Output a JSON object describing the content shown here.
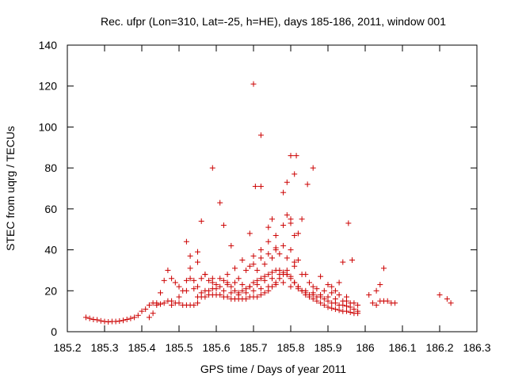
{
  "chart_data": {
    "type": "scatter",
    "title": "Rec. ufpr (Lon=310, Lat=-25, h=HE), days 185-186, 2011, window 001",
    "xlabel": "GPS time / Days of year 2011",
    "ylabel": "STEC from uqrg / TECUs",
    "xlim": [
      185.2,
      186.3
    ],
    "ylim": [
      0,
      140
    ],
    "xticks": [
      "185.2",
      "185.3",
      "185.4",
      "185.5",
      "185.6",
      "185.7",
      "185.8",
      "185.9",
      "186",
      "186.1",
      "186.2",
      "186.3"
    ],
    "yticks": [
      "0",
      "20",
      "40",
      "60",
      "80",
      "100",
      "120",
      "140"
    ],
    "grid": false,
    "marker": "+",
    "color": "#cc0000",
    "series": [
      {
        "name": "STEC",
        "points": [
          [
            185.25,
            7
          ],
          [
            185.26,
            6.5
          ],
          [
            185.27,
            6
          ],
          [
            185.28,
            5.8
          ],
          [
            185.29,
            5.3
          ],
          [
            185.3,
            5
          ],
          [
            185.31,
            4.8
          ],
          [
            185.32,
            5
          ],
          [
            185.33,
            5
          ],
          [
            185.34,
            5.2
          ],
          [
            185.35,
            5.5
          ],
          [
            185.36,
            6
          ],
          [
            185.37,
            6.5
          ],
          [
            185.38,
            7
          ],
          [
            185.39,
            8
          ],
          [
            185.4,
            10
          ],
          [
            185.41,
            11
          ],
          [
            185.42,
            13
          ],
          [
            185.43,
            14
          ],
          [
            185.44,
            14
          ],
          [
            185.45,
            13.5
          ],
          [
            185.46,
            14
          ],
          [
            185.47,
            15
          ],
          [
            185.48,
            15
          ],
          [
            185.49,
            14
          ],
          [
            185.5,
            14
          ],
          [
            185.51,
            13
          ],
          [
            185.52,
            13
          ],
          [
            185.53,
            13
          ],
          [
            185.54,
            13
          ],
          [
            185.55,
            14
          ],
          [
            185.56,
            17
          ],
          [
            185.57,
            17
          ],
          [
            185.58,
            18
          ],
          [
            185.59,
            18
          ],
          [
            185.6,
            18
          ],
          [
            185.61,
            18
          ],
          [
            185.62,
            17
          ],
          [
            185.63,
            17
          ],
          [
            185.64,
            16
          ],
          [
            185.65,
            16
          ],
          [
            185.66,
            16
          ],
          [
            185.67,
            16
          ],
          [
            185.68,
            16
          ],
          [
            185.69,
            17
          ],
          [
            185.7,
            17
          ],
          [
            185.71,
            17
          ],
          [
            185.72,
            18
          ],
          [
            185.73,
            19
          ],
          [
            185.74,
            20
          ],
          [
            185.75,
            22
          ],
          [
            185.76,
            24
          ],
          [
            185.77,
            26
          ],
          [
            185.78,
            28
          ],
          [
            185.79,
            28
          ],
          [
            185.8,
            27
          ],
          [
            185.81,
            24
          ],
          [
            185.82,
            22
          ],
          [
            185.83,
            20
          ],
          [
            185.84,
            18
          ],
          [
            185.85,
            17
          ],
          [
            185.86,
            16
          ],
          [
            185.87,
            15
          ],
          [
            185.88,
            14
          ],
          [
            185.89,
            13
          ],
          [
            185.9,
            12
          ],
          [
            185.91,
            11.5
          ],
          [
            185.92,
            11
          ],
          [
            185.93,
            10.5
          ],
          [
            185.94,
            10
          ],
          [
            185.95,
            10
          ],
          [
            185.96,
            9.5
          ],
          [
            185.97,
            9
          ],
          [
            185.98,
            9
          ],
          [
            185.42,
            7
          ],
          [
            185.43,
            9
          ],
          [
            185.44,
            13
          ],
          [
            185.45,
            19
          ],
          [
            185.46,
            25
          ],
          [
            185.47,
            30
          ],
          [
            185.48,
            26
          ],
          [
            185.49,
            24
          ],
          [
            185.5,
            22
          ],
          [
            185.51,
            20
          ],
          [
            185.52,
            25
          ],
          [
            185.53,
            26
          ],
          [
            185.54,
            25
          ],
          [
            185.55,
            22
          ],
          [
            185.56,
            26
          ],
          [
            185.57,
            28
          ],
          [
            185.58,
            25
          ],
          [
            185.59,
            24
          ],
          [
            185.6,
            23
          ],
          [
            185.61,
            26
          ],
          [
            185.62,
            25
          ],
          [
            185.63,
            24
          ],
          [
            185.64,
            22
          ],
          [
            185.65,
            20
          ],
          [
            185.66,
            19
          ],
          [
            185.67,
            20
          ],
          [
            185.68,
            21
          ],
          [
            185.69,
            22
          ],
          [
            185.7,
            24
          ],
          [
            185.71,
            25
          ],
          [
            185.72,
            26
          ],
          [
            185.73,
            27
          ],
          [
            185.74,
            28
          ],
          [
            185.75,
            29
          ],
          [
            185.76,
            30
          ],
          [
            185.77,
            30
          ],
          [
            185.78,
            29
          ],
          [
            185.79,
            28
          ],
          [
            185.8,
            26
          ],
          [
            185.81,
            24
          ],
          [
            185.82,
            22
          ],
          [
            185.83,
            20
          ],
          [
            185.84,
            19
          ],
          [
            185.85,
            18
          ],
          [
            185.86,
            18
          ],
          [
            185.87,
            17
          ],
          [
            185.88,
            17
          ],
          [
            185.89,
            16
          ],
          [
            185.9,
            15
          ],
          [
            185.91,
            14
          ],
          [
            185.92,
            14
          ],
          [
            185.93,
            13
          ],
          [
            185.94,
            13
          ],
          [
            185.95,
            12.5
          ],
          [
            185.96,
            12
          ],
          [
            185.97,
            11
          ],
          [
            185.98,
            10
          ],
          [
            185.48,
            13
          ],
          [
            185.5,
            17
          ],
          [
            185.52,
            20
          ],
          [
            185.54,
            21
          ],
          [
            185.56,
            19
          ],
          [
            185.58,
            20
          ],
          [
            185.6,
            21
          ],
          [
            185.62,
            20
          ],
          [
            185.64,
            19
          ],
          [
            185.66,
            18
          ],
          [
            185.68,
            19
          ],
          [
            185.7,
            20
          ],
          [
            185.72,
            21
          ],
          [
            185.74,
            22
          ],
          [
            185.76,
            23
          ],
          [
            185.78,
            24
          ],
          [
            185.8,
            22
          ],
          [
            185.82,
            21
          ],
          [
            185.84,
            20
          ],
          [
            185.86,
            19
          ],
          [
            185.88,
            18
          ],
          [
            185.9,
            17
          ],
          [
            185.92,
            16
          ],
          [
            185.94,
            15
          ],
          [
            185.96,
            14
          ],
          [
            185.98,
            13
          ],
          [
            185.55,
            17
          ],
          [
            185.57,
            20
          ],
          [
            185.59,
            21
          ],
          [
            185.61,
            22
          ],
          [
            185.63,
            23
          ],
          [
            185.65,
            24
          ],
          [
            185.67,
            23
          ],
          [
            185.69,
            22
          ],
          [
            185.71,
            23
          ],
          [
            185.73,
            25
          ],
          [
            185.75,
            26
          ],
          [
            185.77,
            28
          ],
          [
            185.79,
            30
          ],
          [
            185.81,
            32
          ],
          [
            185.83,
            28
          ],
          [
            185.85,
            24
          ],
          [
            185.87,
            21
          ],
          [
            185.89,
            20
          ],
          [
            185.91,
            19
          ],
          [
            185.93,
            18
          ],
          [
            185.95,
            17
          ],
          [
            185.66,
            26
          ],
          [
            185.68,
            30
          ],
          [
            185.7,
            33
          ],
          [
            185.72,
            36
          ],
          [
            185.74,
            38
          ],
          [
            185.76,
            40
          ],
          [
            185.78,
            42
          ],
          [
            185.8,
            40
          ],
          [
            185.82,
            35
          ],
          [
            185.84,
            28
          ],
          [
            185.86,
            22
          ],
          [
            185.7,
            37
          ],
          [
            185.72,
            40
          ],
          [
            185.74,
            44
          ],
          [
            185.76,
            47
          ],
          [
            185.78,
            52
          ],
          [
            185.8,
            55
          ],
          [
            185.82,
            48
          ],
          [
            185.53,
            31
          ],
          [
            185.55,
            34
          ],
          [
            185.57,
            28
          ],
          [
            185.59,
            26
          ],
          [
            185.63,
            28
          ],
          [
            185.65,
            31
          ],
          [
            185.67,
            35
          ],
          [
            185.69,
            32
          ],
          [
            185.71,
            30
          ],
          [
            185.73,
            33
          ],
          [
            185.75,
            36
          ],
          [
            185.77,
            38
          ],
          [
            185.79,
            36
          ],
          [
            185.81,
            34
          ],
          [
            185.52,
            44
          ],
          [
            185.53,
            37
          ],
          [
            185.55,
            39
          ],
          [
            185.56,
            54
          ],
          [
            185.59,
            80
          ],
          [
            185.61,
            63
          ],
          [
            185.62,
            52
          ],
          [
            185.64,
            42
          ],
          [
            185.69,
            48
          ],
          [
            185.7,
            121
          ],
          [
            185.705,
            71
          ],
          [
            185.72,
            96
          ],
          [
            185.72,
            71
          ],
          [
            185.74,
            51
          ],
          [
            185.75,
            55
          ],
          [
            185.78,
            68
          ],
          [
            185.79,
            73
          ],
          [
            185.8,
            86
          ],
          [
            185.81,
            77
          ],
          [
            185.815,
            86
          ],
          [
            185.83,
            55
          ],
          [
            185.845,
            72
          ],
          [
            185.86,
            80
          ],
          [
            185.79,
            57
          ],
          [
            185.8,
            53
          ],
          [
            185.81,
            47
          ],
          [
            185.76,
            41
          ],
          [
            185.88,
            27
          ],
          [
            185.9,
            23
          ],
          [
            185.91,
            22
          ],
          [
            185.92,
            20
          ],
          [
            185.93,
            24
          ],
          [
            185.94,
            34
          ],
          [
            185.95,
            15
          ],
          [
            185.955,
            53
          ],
          [
            185.965,
            35
          ],
          [
            185.97,
            14
          ],
          [
            186.01,
            18
          ],
          [
            186.02,
            14
          ],
          [
            186.03,
            20
          ],
          [
            186.04,
            23
          ],
          [
            186.05,
            31
          ],
          [
            186.06,
            15
          ],
          [
            186.07,
            14
          ],
          [
            186.08,
            14
          ],
          [
            186.03,
            13
          ],
          [
            186.04,
            15
          ],
          [
            186.05,
            15
          ],
          [
            186.2,
            18
          ],
          [
            186.22,
            16
          ],
          [
            186.23,
            14
          ]
        ]
      }
    ]
  }
}
